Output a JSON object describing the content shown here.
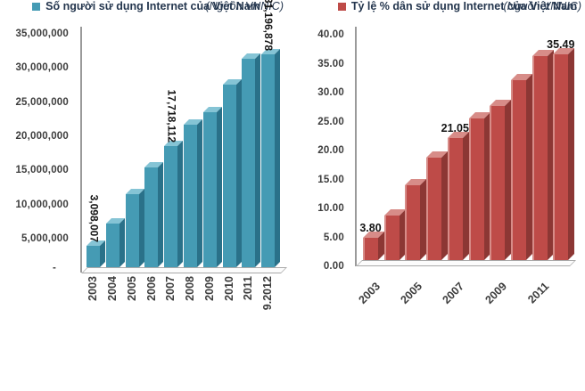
{
  "page": {
    "background": "#ffffff"
  },
  "chart_data": [
    {
      "type": "bar",
      "title": "",
      "categories": [
        "2003",
        "2004",
        "2005",
        "2006",
        "2007",
        "2008",
        "2009",
        "2010",
        "2011",
        "9.2012"
      ],
      "values": [
        3098007,
        6345049,
        10710980,
        14683783,
        17718112,
        20834401,
        22779887,
        26784035,
        30552417,
        31196878
      ],
      "ylim": [
        0,
        35000000
      ],
      "y_tick_labels": [
        "35,000,000",
        "30,000,000",
        "25,000,000",
        "20,000,000",
        "15,000,000",
        "10,000,000",
        "5,000,000",
        "-"
      ],
      "data_labels": [
        {
          "index": 0,
          "text": "3,098,007"
        },
        {
          "index": 4,
          "text": "17,718,112"
        },
        {
          "index": 9,
          "text": "31,196,878"
        }
      ],
      "data_label_rotation": 90,
      "x_tick_rotation": -90,
      "grid": false,
      "style_3d": true,
      "legend_position": "bottom",
      "legend": "Số người sử dụng Internet của Việt Nam",
      "source": "(Nguồn VNNIC)",
      "colors": {
        "face": "#459BB4",
        "top": "#85C4D5",
        "side": "#2A7189"
      }
    },
    {
      "type": "bar",
      "title": "",
      "categories": [
        "2003",
        "2004",
        "2005",
        "2006",
        "2007",
        "2008",
        "2009",
        "2010",
        "2011",
        "9.2012"
      ],
      "visible_x_ticks": [
        "2003",
        "2005",
        "2007",
        "2009",
        "2011"
      ],
      "tick_every": 2,
      "values": [
        3.8,
        7.69,
        12.9,
        17.67,
        21.05,
        24.4,
        26.55,
        31.11,
        35.26,
        35.49
      ],
      "ylim": [
        0,
        40
      ],
      "y_tick_labels": [
        "40.00",
        "35.00",
        "30.00",
        "25.00",
        "20.00",
        "15.00",
        "10.00",
        "5.00",
        "0.00"
      ],
      "data_labels": [
        {
          "index": 0,
          "text": "3.80"
        },
        {
          "index": 4,
          "text": "21.05"
        },
        {
          "index": 9,
          "text": "35.49"
        }
      ],
      "data_label_rotation": 0,
      "x_tick_rotation": -45,
      "grid": false,
      "style_3d": true,
      "legend_position": "bottom",
      "legend": "Tỷ lệ % dân sử dụng Internet của Việt Nam",
      "source": "(Nguồn VNNIC)",
      "colors": {
        "face": "#BE4B48",
        "top": "#D78C88",
        "side": "#8C3734"
      }
    }
  ]
}
